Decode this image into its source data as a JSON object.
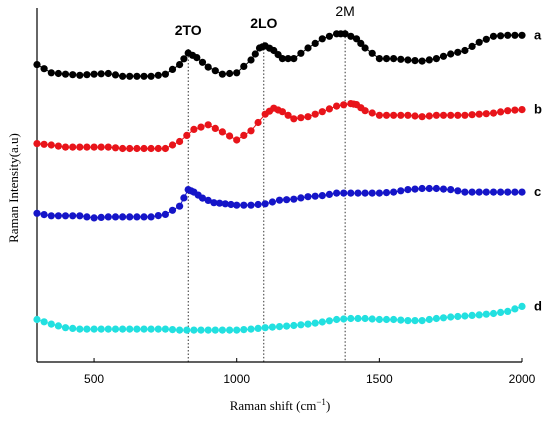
{
  "chart_data": {
    "type": "line",
    "xlabel_main": "Raman shift (",
    "xlabel_unit": "cm",
    "xlabel_exp": "−1",
    "xlabel_close": ")",
    "ylabel": "Raman Intensity(a.u)",
    "xlim": [
      300,
      2000
    ],
    "ylim": [
      0,
      1
    ],
    "x_ticks": [
      500,
      1000,
      1500,
      2000
    ],
    "x_tick_labels": [
      "500",
      "1000",
      "1500",
      "2000"
    ],
    "y_ticks_labeled": false,
    "peaks": [
      {
        "label": "2TO",
        "x": 830,
        "bold": true
      },
      {
        "label": "2LO",
        "x": 1095,
        "bold": true
      },
      {
        "label": "2M",
        "x": 1380,
        "bold": false
      }
    ],
    "series": [
      {
        "name": "a",
        "color": "#000000",
        "x": [
          300,
          350,
          400,
          450,
          500,
          550,
          600,
          650,
          700,
          750,
          800,
          830,
          860,
          900,
          950,
          1000,
          1050,
          1080,
          1100,
          1130,
          1160,
          1200,
          1250,
          1300,
          1350,
          1380,
          1420,
          1450,
          1500,
          1550,
          1600,
          1650,
          1700,
          1750,
          1800,
          1850,
          1900,
          1950,
          2000
        ],
        "values": [
          0.84,
          0.817,
          0.813,
          0.81,
          0.813,
          0.815,
          0.807,
          0.807,
          0.807,
          0.813,
          0.84,
          0.873,
          0.86,
          0.833,
          0.813,
          0.817,
          0.853,
          0.887,
          0.893,
          0.88,
          0.857,
          0.857,
          0.887,
          0.913,
          0.927,
          0.927,
          0.913,
          0.887,
          0.857,
          0.857,
          0.853,
          0.85,
          0.857,
          0.87,
          0.88,
          0.903,
          0.92,
          0.923,
          0.923
        ]
      },
      {
        "name": "b",
        "color": "#e8141a",
        "x": [
          300,
          350,
          400,
          450,
          500,
          550,
          600,
          650,
          700,
          750,
          800,
          850,
          900,
          950,
          1000,
          1050,
          1100,
          1130,
          1160,
          1200,
          1250,
          1300,
          1350,
          1400,
          1420,
          1450,
          1500,
          1550,
          1600,
          1650,
          1700,
          1750,
          1800,
          1850,
          1900,
          1950,
          2000
        ],
        "values": [
          0.617,
          0.613,
          0.607,
          0.607,
          0.607,
          0.607,
          0.603,
          0.603,
          0.603,
          0.603,
          0.623,
          0.657,
          0.67,
          0.65,
          0.627,
          0.653,
          0.7,
          0.717,
          0.707,
          0.687,
          0.693,
          0.707,
          0.723,
          0.73,
          0.727,
          0.71,
          0.697,
          0.697,
          0.697,
          0.693,
          0.697,
          0.697,
          0.697,
          0.7,
          0.703,
          0.71,
          0.713
        ]
      },
      {
        "name": "c",
        "color": "#1515c8",
        "x": [
          300,
          350,
          400,
          450,
          500,
          550,
          600,
          650,
          700,
          750,
          800,
          830,
          850,
          880,
          920,
          960,
          1000,
          1050,
          1100,
          1150,
          1200,
          1250,
          1300,
          1350,
          1400,
          1450,
          1500,
          1550,
          1600,
          1650,
          1700,
          1750,
          1800,
          1850,
          1900,
          1950,
          2000
        ],
        "values": [
          0.42,
          0.413,
          0.413,
          0.413,
          0.407,
          0.41,
          0.41,
          0.41,
          0.41,
          0.417,
          0.44,
          0.487,
          0.48,
          0.463,
          0.45,
          0.447,
          0.443,
          0.443,
          0.447,
          0.457,
          0.46,
          0.467,
          0.47,
          0.477,
          0.477,
          0.477,
          0.477,
          0.48,
          0.487,
          0.49,
          0.49,
          0.487,
          0.48,
          0.48,
          0.48,
          0.48,
          0.48
        ]
      },
      {
        "name": "d",
        "color": "#22e0e0",
        "x": [
          300,
          350,
          400,
          450,
          500,
          550,
          600,
          650,
          700,
          750,
          800,
          850,
          900,
          950,
          1000,
          1050,
          1100,
          1150,
          1200,
          1250,
          1300,
          1350,
          1400,
          1450,
          1500,
          1550,
          1600,
          1650,
          1700,
          1750,
          1800,
          1850,
          1900,
          1950,
          2000
        ],
        "values": [
          0.12,
          0.107,
          0.097,
          0.093,
          0.093,
          0.093,
          0.093,
          0.093,
          0.093,
          0.093,
          0.09,
          0.09,
          0.09,
          0.09,
          0.09,
          0.093,
          0.097,
          0.1,
          0.103,
          0.107,
          0.113,
          0.12,
          0.123,
          0.123,
          0.12,
          0.12,
          0.117,
          0.117,
          0.123,
          0.127,
          0.13,
          0.133,
          0.137,
          0.143,
          0.157
        ]
      }
    ]
  }
}
